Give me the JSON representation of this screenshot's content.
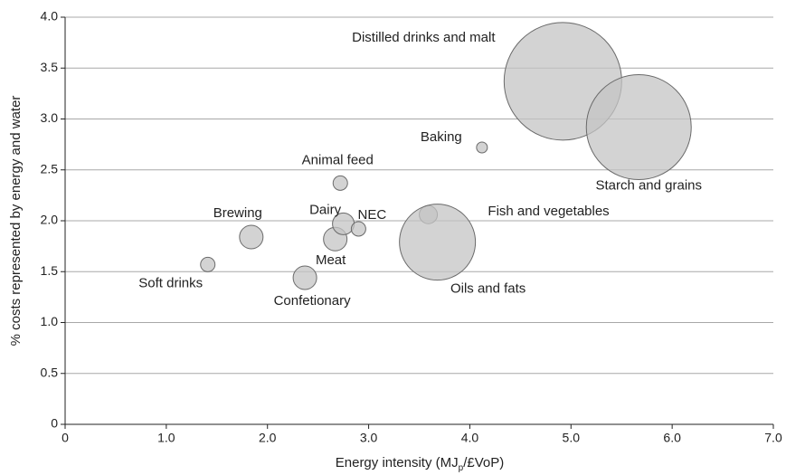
{
  "chart_data": {
    "type": "bubble",
    "ylabel": "% costs represented by energy and water",
    "xlabel_parts": [
      "Energy intensity (MJ",
      "p",
      "/£VoP)"
    ],
    "labels": [
      "Soft drinks",
      "Brewing",
      "Confetionary",
      "Meat",
      "Dairy",
      "NEC",
      "Animal feed",
      "Baking",
      "Fish and vegetables",
      "Oils and fats",
      "Distilled drinks and malt",
      "Starch and grains"
    ],
    "x": [
      1.41,
      1.84,
      2.37,
      2.67,
      2.75,
      2.9,
      2.72,
      4.12,
      3.59,
      3.68,
      4.92,
      5.67
    ],
    "y": [
      1.57,
      1.84,
      1.44,
      1.82,
      1.97,
      1.92,
      2.37,
      2.72,
      2.06,
      1.79,
      3.37,
      2.92
    ],
    "sizes": [
      8,
      13,
      13,
      13,
      12,
      8,
      8,
      6,
      10,
      42,
      65,
      58
    ],
    "color": "#c4c4c4",
    "edge_color": "#6a6a6a",
    "xlim": [
      0,
      7
    ],
    "ylim": [
      0,
      4
    ],
    "xticks": [
      0,
      {
        "value": 1,
        "label": "1.0"
      },
      {
        "value": 2,
        "label": "2.0"
      },
      {
        "value": 3,
        "label": "3.0"
      },
      {
        "value": 4,
        "label": "4.0"
      },
      {
        "value": 5,
        "label": "5.0"
      },
      {
        "value": 6,
        "label": "6.0"
      },
      {
        "value": 7,
        "label": "7.0"
      }
    ],
    "yticks": [
      0,
      0.5,
      {
        "value": 1,
        "label": "1.0"
      },
      1.5,
      {
        "value": 2,
        "label": "2.0"
      },
      2.5,
      {
        "value": 3,
        "label": "3.0"
      },
      3.5,
      {
        "value": 4,
        "label": "4.0"
      }
    ],
    "grid": true
  }
}
